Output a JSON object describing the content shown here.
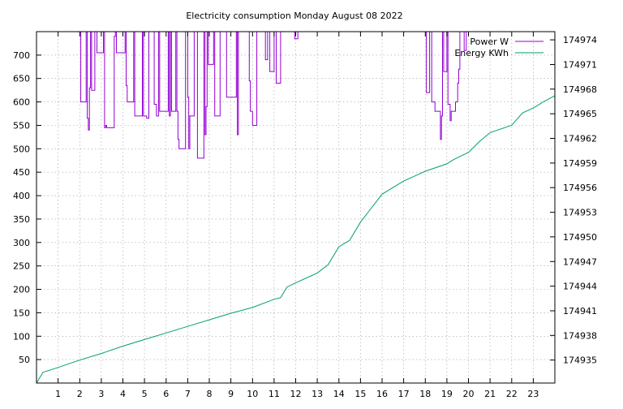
{
  "chart_data": {
    "type": "line",
    "title": "Electricity consumption Monday August 08 2022",
    "xlabel": "",
    "ylabel": "",
    "y2label": "",
    "xlim": [
      0,
      24
    ],
    "ylim": [
      0,
      750
    ],
    "y2lim": [
      174932.2,
      174975
    ],
    "x_ticks": [
      1,
      2,
      3,
      4,
      5,
      6,
      7,
      8,
      9,
      10,
      11,
      12,
      13,
      14,
      15,
      16,
      17,
      18,
      19,
      20,
      21,
      22,
      23
    ],
    "y_ticks": [
      50,
      100,
      150,
      200,
      250,
      300,
      350,
      400,
      450,
      500,
      550,
      600,
      650,
      700
    ],
    "y2_ticks": [
      174935,
      174938,
      174941,
      174944,
      174947,
      174950,
      174953,
      174956,
      174959,
      174962,
      174965,
      174968,
      174971,
      174974
    ],
    "grid": true,
    "legend_position": "top-right",
    "colors": {
      "power": "#9400d3",
      "energy": "#009e73"
    },
    "series": [
      {
        "name": "Power W",
        "axis": "left",
        "style": "steps",
        "points": [
          [
            2.0,
            750
          ],
          [
            2.05,
            600
          ],
          [
            2.3,
            750
          ],
          [
            2.35,
            565
          ],
          [
            2.4,
            540
          ],
          [
            2.45,
            630
          ],
          [
            2.5,
            750
          ],
          [
            2.55,
            625
          ],
          [
            2.7,
            750
          ],
          [
            2.8,
            705
          ],
          [
            3.1,
            750
          ],
          [
            3.15,
            545
          ],
          [
            3.2,
            550
          ],
          [
            3.25,
            545
          ],
          [
            3.6,
            740
          ],
          [
            3.65,
            750
          ],
          [
            3.7,
            705
          ],
          [
            4.1,
            750
          ],
          [
            4.15,
            635
          ],
          [
            4.2,
            600
          ],
          [
            4.5,
            750
          ],
          [
            4.55,
            570
          ],
          [
            4.85,
            570
          ],
          [
            4.9,
            750
          ],
          [
            4.95,
            570
          ],
          [
            5.1,
            565
          ],
          [
            5.2,
            750
          ],
          [
            5.4,
            750
          ],
          [
            5.45,
            595
          ],
          [
            5.55,
            570
          ],
          [
            5.65,
            750
          ],
          [
            5.7,
            580
          ],
          [
            6.1,
            750
          ],
          [
            6.15,
            570
          ],
          [
            6.2,
            750
          ],
          [
            6.25,
            580
          ],
          [
            6.45,
            750
          ],
          [
            6.5,
            580
          ],
          [
            6.55,
            520
          ],
          [
            6.6,
            500
          ],
          [
            6.9,
            750
          ],
          [
            6.95,
            750
          ],
          [
            7.0,
            610
          ],
          [
            7.05,
            500
          ],
          [
            7.1,
            570
          ],
          [
            7.3,
            750
          ],
          [
            7.45,
            480
          ],
          [
            7.75,
            750
          ],
          [
            7.8,
            530
          ],
          [
            7.85,
            590
          ],
          [
            7.9,
            750
          ],
          [
            7.95,
            680
          ],
          [
            8.2,
            750
          ],
          [
            8.25,
            570
          ],
          [
            8.5,
            750
          ],
          [
            8.75,
            750
          ],
          [
            8.8,
            610
          ],
          [
            9.25,
            750
          ],
          [
            9.3,
            530
          ],
          [
            9.35,
            750
          ],
          [
            9.8,
            750
          ],
          [
            9.85,
            645
          ],
          [
            9.9,
            580
          ],
          [
            10.0,
            550
          ],
          [
            10.2,
            750
          ],
          [
            10.6,
            690
          ],
          [
            10.7,
            750
          ],
          [
            10.8,
            665
          ],
          [
            11.0,
            750
          ],
          [
            11.1,
            640
          ],
          [
            11.3,
            750
          ],
          [
            11.95,
            735
          ],
          [
            12.1,
            750
          ],
          [
            18.0,
            750
          ],
          [
            18.05,
            620
          ],
          [
            18.2,
            750
          ],
          [
            18.3,
            600
          ],
          [
            18.45,
            580
          ],
          [
            18.7,
            520
          ],
          [
            18.75,
            570
          ],
          [
            18.8,
            750
          ],
          [
            18.85,
            665
          ],
          [
            19.0,
            750
          ],
          [
            19.05,
            595
          ],
          [
            19.15,
            560
          ],
          [
            19.2,
            580
          ],
          [
            19.4,
            600
          ],
          [
            19.5,
            640
          ],
          [
            19.55,
            670
          ],
          [
            19.6,
            750
          ],
          [
            19.75,
            750
          ],
          [
            19.8,
            710
          ],
          [
            19.9,
            750
          ],
          [
            20.0,
            750
          ]
        ]
      },
      {
        "name": "Energy KWh",
        "axis": "right",
        "style": "line",
        "points": [
          [
            0,
            174932.2
          ],
          [
            0.3,
            174933.5
          ],
          [
            1,
            174934.1
          ],
          [
            2,
            174935.0
          ],
          [
            3,
            174935.8
          ],
          [
            4,
            174936.7
          ],
          [
            5,
            174937.5
          ],
          [
            6,
            174938.3
          ],
          [
            7,
            174939.1
          ],
          [
            8,
            174939.9
          ],
          [
            9,
            174940.7
          ],
          [
            10,
            174941.4
          ],
          [
            11,
            174942.4
          ],
          [
            11.3,
            174942.6
          ],
          [
            11.6,
            174943.9
          ],
          [
            12,
            174944.4
          ],
          [
            13,
            174945.6
          ],
          [
            13.5,
            174946.6
          ],
          [
            14,
            174948.8
          ],
          [
            14.5,
            174949.6
          ],
          [
            15,
            174951.8
          ],
          [
            15.5,
            174953.5
          ],
          [
            16,
            174955.2
          ],
          [
            17,
            174956.8
          ],
          [
            18,
            174958.0
          ],
          [
            19,
            174958.9
          ],
          [
            19.3,
            174959.4
          ],
          [
            20,
            174960.3
          ],
          [
            20.5,
            174961.6
          ],
          [
            21,
            174962.7
          ],
          [
            22,
            174963.6
          ],
          [
            22.5,
            174965.1
          ],
          [
            23,
            174965.7
          ],
          [
            23.5,
            174966.5
          ],
          [
            24,
            174967.2
          ]
        ]
      }
    ]
  }
}
